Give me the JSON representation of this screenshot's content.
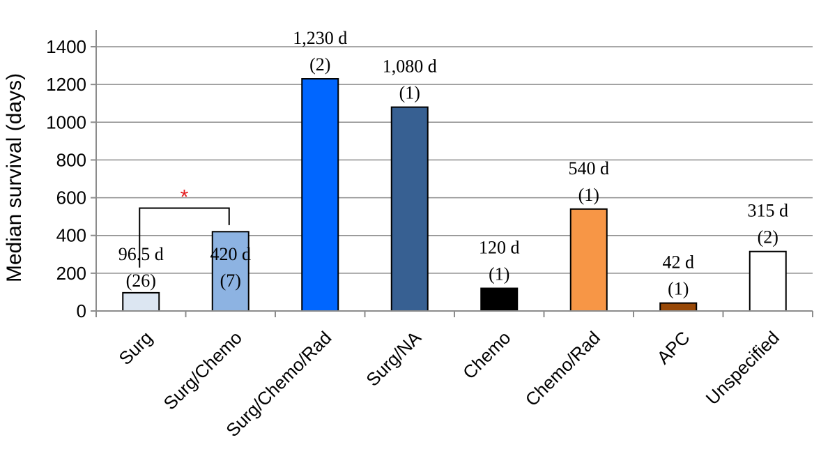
{
  "chart_data": {
    "type": "bar",
    "ylabel": "Median survival (days)",
    "xlabel": "",
    "ylim": [
      0,
      1400
    ],
    "yticks": [
      0,
      200,
      400,
      600,
      800,
      1000,
      1200,
      1400
    ],
    "grid": "horizontal",
    "categories": [
      "Surg",
      "Surg/Chemo",
      "Surg/Chemo/Rad",
      "Surg/NA",
      "Chemo",
      "Chemo/Rad",
      "APC",
      "Unspecified"
    ],
    "values": [
      96.5,
      420,
      1230,
      1080,
      120,
      540,
      42,
      315
    ],
    "colors": [
      "#dce6f2",
      "#8db3e2",
      "#0066ff",
      "#376092",
      "#000000",
      "#f79646",
      "#984807",
      "#ffffff"
    ],
    "value_labels": [
      "96.5 d",
      "420 d",
      "1,230 d",
      "1,080 d",
      "120 d",
      "540 d",
      "42 d",
      "315 d"
    ],
    "n_labels": [
      "(26)",
      "(7)",
      "(2)",
      "(1)",
      "(1)",
      "(1)",
      "(1)",
      "(2)"
    ],
    "annotations": [
      {
        "type": "significance-bracket",
        "between": [
          "Surg",
          "Surg/Chemo"
        ],
        "text": "*",
        "color": "#e31a1c"
      }
    ]
  }
}
